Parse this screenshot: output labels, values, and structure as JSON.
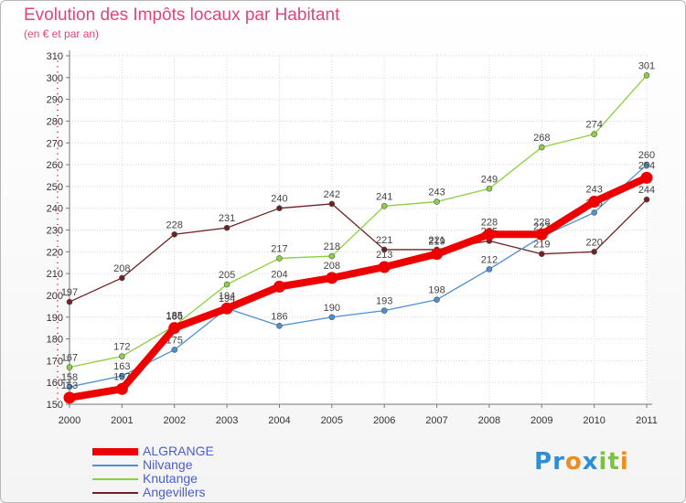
{
  "chart_data": {
    "type": "line",
    "title": "Evolution des Impôts locaux par Habitant",
    "subtitle": "(en € et par an)",
    "xlabel": "",
    "ylabel": "",
    "categories": [
      "2000",
      "2001",
      "2002",
      "2003",
      "2004",
      "2005",
      "2006",
      "2007",
      "2008",
      "2009",
      "2010",
      "2011"
    ],
    "ylim": [
      150,
      310
    ],
    "yticks": [
      150,
      160,
      170,
      180,
      190,
      200,
      210,
      220,
      230,
      240,
      250,
      260,
      270,
      280,
      290,
      300,
      310
    ],
    "grid": true,
    "legend_position": "bottom-left",
    "series": [
      {
        "name": "ALGRANGE",
        "color": "#ee0000",
        "values": [
          153,
          157,
          185,
          194,
          204,
          208,
          213,
          219,
          228,
          228,
          243,
          254
        ],
        "label_values": [
          "153",
          "157",
          "185",
          "194",
          "204",
          "208",
          "213",
          "219",
          "228",
          "228",
          "243",
          "254"
        ]
      },
      {
        "name": "Nilvange",
        "color": "#4d8fcf",
        "values": [
          158,
          163,
          175,
          194,
          186,
          190,
          193,
          198,
          212,
          227,
          238,
          260
        ],
        "label_values": [
          "158",
          "163",
          "175",
          "194",
          "186",
          "190",
          "193",
          "198",
          "212",
          "227",
          "238",
          "260"
        ]
      },
      {
        "name": "Knutange",
        "color": "#8ccf3f",
        "values": [
          167,
          172,
          186,
          205,
          217,
          218,
          241,
          243,
          249,
          268,
          274,
          301
        ],
        "label_values": [
          "167",
          "172",
          "186",
          "205",
          "217",
          "218",
          "241",
          "243",
          "249",
          "268",
          "274",
          "301"
        ]
      },
      {
        "name": "Angevillers",
        "color": "#6e2222",
        "values": [
          197,
          208,
          228,
          231,
          240,
          242,
          221,
          221,
          225,
          219,
          220,
          244
        ],
        "label_values": [
          "197",
          "208",
          "228",
          "231",
          "240",
          "242",
          "221",
          "221",
          "225",
          "219",
          "220",
          "244"
        ]
      }
    ]
  },
  "logo": {
    "text": "Proxiti",
    "letters": [
      "P",
      "r",
      "o",
      "x",
      "i",
      "t",
      "i"
    ],
    "colors": [
      "#2f8fd6",
      "#2f8fd6",
      "#f08c1e",
      "#2f8fd6",
      "#7cc242",
      "#7cc242",
      "#f08c1e"
    ]
  }
}
